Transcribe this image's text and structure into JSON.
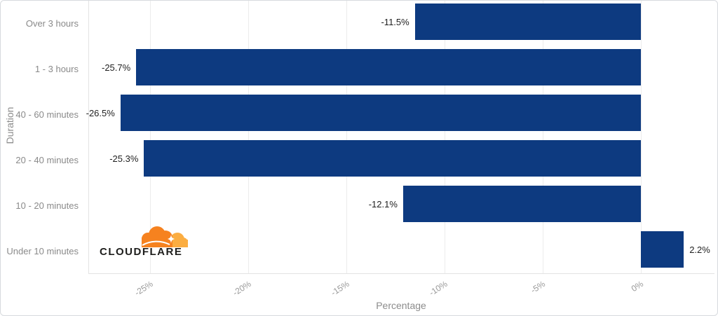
{
  "chart_data": {
    "type": "bar",
    "orientation": "horizontal",
    "categories": [
      "Over 3 hours",
      "1 - 3 hours",
      "40 - 60 minutes",
      "20 - 40 minutes",
      "10 - 20 minutes",
      "Under 10 minutes"
    ],
    "values": [
      -11.5,
      -25.7,
      -26.5,
      -25.3,
      -12.1,
      2.2
    ],
    "value_labels": [
      "-11.5%",
      "-25.7%",
      "-26.5%",
      "-25.3%",
      "-12.1%",
      "2.2%"
    ],
    "xlabel": "Percentage",
    "ylabel": "Duration",
    "xlim": [
      -28.1,
      3.8
    ],
    "x_ticks": [
      -25,
      -20,
      -15,
      -10,
      -5,
      0
    ],
    "x_tick_labels": [
      "-25%",
      "-20%",
      "-15%",
      "-10%",
      "-5%",
      "0%"
    ],
    "grid": true,
    "legend": false
  },
  "branding": {
    "wordmark": "CLOUDFLARE"
  },
  "colors": {
    "bar": "#0d3a80",
    "grid": "#ececec",
    "axis_line": "#e3e3e3",
    "tick_text": "#999999",
    "axis_title_text": "#8c8c8c",
    "category_text": "#8a8a8a",
    "value_text": "#1f1f1f",
    "logo_orange": "#f6821f",
    "logo_light_orange": "#fbad41",
    "logo_text": "#1d1d1b",
    "border": "#d7dade",
    "background": "#ffffff"
  }
}
